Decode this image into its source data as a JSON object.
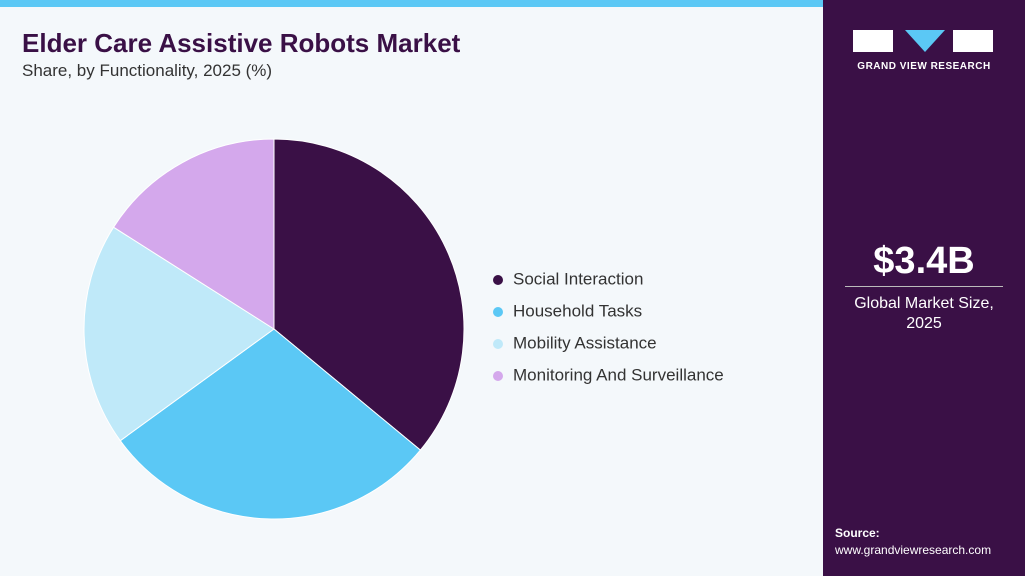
{
  "chart_data": {
    "type": "pie",
    "title": "Elder Care Assistive Robots Market",
    "subtitle": "Share, by Functionality, 2025 (%)",
    "categories": [
      "Social Interaction",
      "Household Tasks",
      "Mobility Assistance",
      "Monitoring And Surveillance"
    ],
    "values": [
      36,
      29,
      19,
      16
    ],
    "colors": [
      "#3a1046",
      "#5bc8f5",
      "#bfe9f9",
      "#d4a8ec"
    ]
  },
  "brand": "GRAND VIEW RESEARCH",
  "market_size": {
    "value": "$3.4B",
    "label": "Global Market Size, 2025"
  },
  "source": {
    "label": "Source:",
    "url": "www.grandviewresearch.com"
  }
}
